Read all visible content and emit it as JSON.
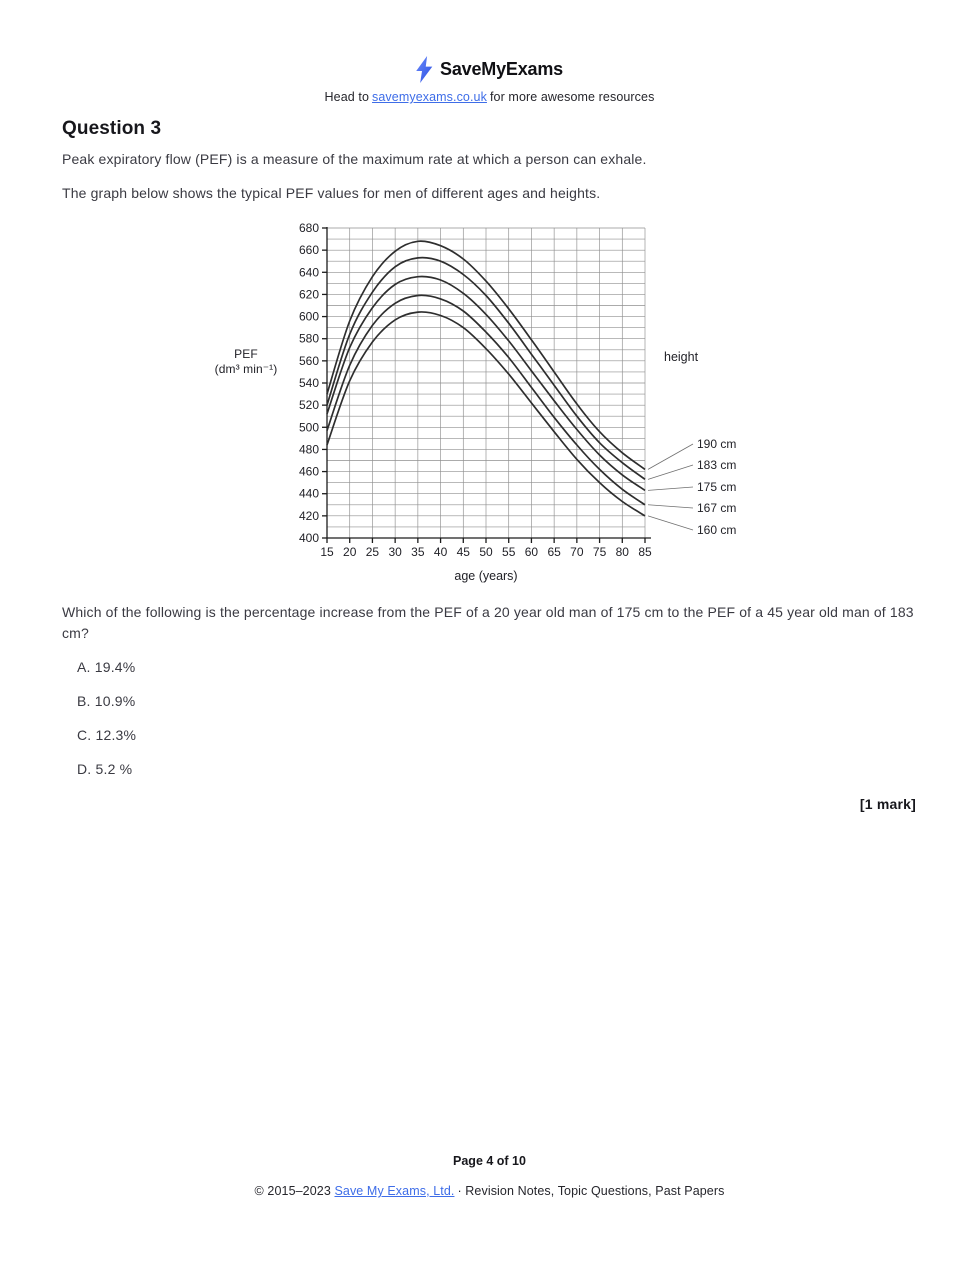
{
  "header": {
    "brand": "SaveMyExams",
    "tagline_prefix": "Head to",
    "tagline_link": "savemyexams.co.uk",
    "tagline_suffix": "for more awesome resources"
  },
  "question": {
    "title": "Question 3",
    "intro1": "Peak expiratory flow (PEF) is a measure of the maximum rate at which a person can exhale.",
    "intro2": "The graph below shows the typical PEF values for men of different ages and heights.",
    "prompt": "Which of the following is the percentage increase from the PEF of a 20 year old man of 175 cm to the PEF of a 45 year old man of 183 cm?",
    "options": [
      "A. 19.4%",
      "B. 10.9%",
      "C. 12.3%",
      "D. 5.2 %"
    ],
    "mark": "[1 mark]"
  },
  "chart_data": {
    "type": "line",
    "title": "",
    "xlabel": "age (years)",
    "ylabel": "PEF (dm³ min⁻¹)",
    "ylabel_lines": [
      "PEF",
      "(dm³ min⁻¹)"
    ],
    "right_label": "height",
    "x": [
      15,
      20,
      25,
      30,
      35,
      40,
      45,
      50,
      55,
      60,
      65,
      70,
      75,
      80,
      85
    ],
    "xlim": [
      15,
      85
    ],
    "ylim": [
      400,
      680
    ],
    "x_tick_step": 5,
    "y_major_step": 20,
    "y_minor_step": 10,
    "grid": true,
    "legend_position": "right",
    "series": [
      {
        "name": "190 cm",
        "values": [
          530,
          596,
          636,
          659,
          668,
          664,
          652,
          632,
          607,
          579,
          550,
          521,
          496,
          477,
          462
        ]
      },
      {
        "name": "183 cm",
        "values": [
          520,
          584,
          622,
          645,
          653,
          650,
          638,
          619,
          594,
          566,
          538,
          510,
          486,
          468,
          453
        ]
      },
      {
        "name": "175 cm",
        "values": [
          512,
          572,
          608,
          629,
          636,
          633,
          621,
          602,
          578,
          551,
          524,
          498,
          475,
          457,
          443
        ]
      },
      {
        "name": "167 cm",
        "values": [
          497,
          556,
          592,
          612,
          619,
          616,
          605,
          586,
          563,
          536,
          509,
          484,
          462,
          444,
          430
        ]
      },
      {
        "name": "160 cm",
        "values": [
          484,
          542,
          577,
          597,
          604,
          601,
          590,
          571,
          548,
          522,
          496,
          471,
          450,
          433,
          420
        ]
      }
    ]
  },
  "footer": {
    "page": "Page 4 of 10",
    "copyright_prefix": "© 2015–2023",
    "copyright_link": "Save My Exams, Ltd.",
    "copyright_suffix": "· Revision Notes, Topic Questions, Past Papers"
  },
  "colors": {
    "link": "#3e6de8",
    "bolt_light": "#6b8bfb",
    "bolt_dark": "#2b4fe2",
    "curve": "#2e2e2e",
    "grid": "#8f8f8f"
  }
}
